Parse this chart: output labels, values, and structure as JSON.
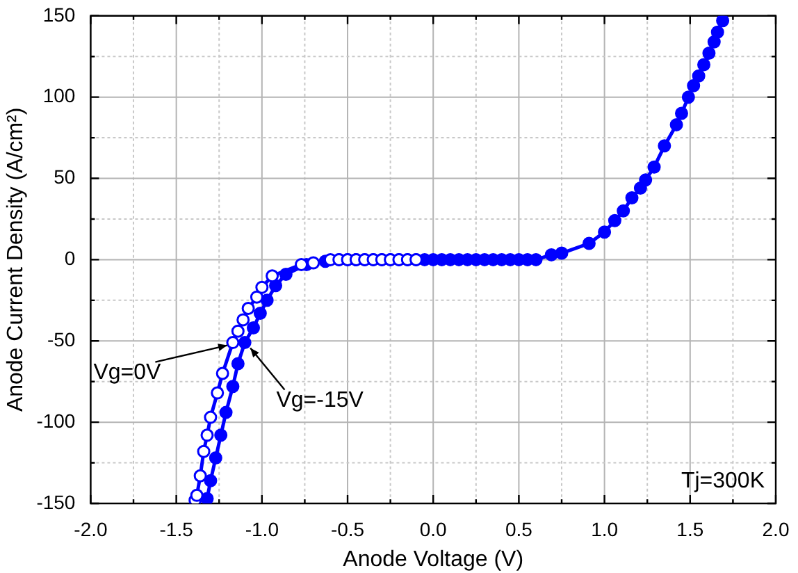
{
  "chart_data": {
    "type": "line",
    "xlabel": "Anode Voltage (V)",
    "ylabel": "Anode Current Density (A/cm²)",
    "xlim": [
      -2,
      2
    ],
    "ylim": [
      -150,
      150
    ],
    "xticks": [
      {
        "value": -2,
        "label": "-2.0"
      },
      {
        "value": -1.75,
        "label": null
      },
      {
        "value": -1.5,
        "label": "-1.5"
      },
      {
        "value": -1.25,
        "label": null
      },
      {
        "value": -1,
        "label": "-1.0"
      },
      {
        "value": -0.75,
        "label": null
      },
      {
        "value": -0.5,
        "label": "-0.5"
      },
      {
        "value": -0.25,
        "label": null
      },
      {
        "value": 0,
        "label": "0.0"
      },
      {
        "value": 0.25,
        "label": null
      },
      {
        "value": 0.5,
        "label": "0.5"
      },
      {
        "value": 0.75,
        "label": null
      },
      {
        "value": 1,
        "label": "1.0"
      },
      {
        "value": 1.25,
        "label": null
      },
      {
        "value": 1.5,
        "label": "1.5"
      },
      {
        "value": 1.75,
        "label": null
      },
      {
        "value": 2,
        "label": "2.0"
      }
    ],
    "yticks": [
      -150,
      {
        "value": -125,
        "label": null
      },
      -100,
      {
        "value": -75,
        "label": null
      },
      -50,
      {
        "value": -25,
        "label": null
      },
      0,
      {
        "value": 25,
        "label": null
      },
      50,
      {
        "value": 75,
        "label": null
      },
      100,
      {
        "value": 125,
        "label": null
      },
      150
    ],
    "grid": true,
    "legend": false,
    "marker": "circle",
    "line_style": "solid",
    "annotations": [
      "Tj=300K"
    ],
    "series": [
      {
        "name": "Vg=0V",
        "color": "#0000ff",
        "x": [
          -1.39,
          -1.38,
          -1.36,
          -1.34,
          -1.32,
          -1.3,
          -1.26,
          -1.23,
          -1.17,
          -1.14,
          -1.11,
          -1.08,
          -1.03,
          -1.0,
          -0.94,
          -0.77,
          -0.7,
          -0.6,
          -0.55,
          -0.5,
          -0.45,
          -0.4,
          -0.35,
          -0.3,
          -0.25,
          -0.2,
          -0.15,
          -0.1
        ],
        "values": [
          -148,
          -145,
          -133,
          -118,
          -108,
          -97,
          -82,
          -70,
          -51,
          -44,
          -37,
          -30,
          -23,
          -17,
          -10,
          -3,
          -2,
          0,
          0,
          0,
          0,
          0,
          0,
          0,
          0,
          0,
          0,
          0
        ]
      },
      {
        "name": "Vg=-15V",
        "color": "#0000ff",
        "x": [
          -1.32,
          -1.3,
          -1.27,
          -1.24,
          -1.21,
          -1.17,
          -1.14,
          -1.1,
          -1.05,
          -1.01,
          -0.97,
          -0.92,
          -0.86,
          -0.74,
          -0.63,
          -0.55,
          -0.5,
          -0.45,
          -0.4,
          -0.35,
          -0.3,
          -0.25,
          -0.2,
          -0.15,
          -0.1,
          -0.05,
          0,
          0.05,
          0.1,
          0.15,
          0.2,
          0.25,
          0.3,
          0.35,
          0.4,
          0.45,
          0.5,
          0.55,
          0.6,
          0.69,
          0.75,
          0.91,
          1.0,
          1.06,
          1.11,
          1.16,
          1.21,
          1.24,
          1.29,
          1.35,
          1.42,
          1.45,
          1.49,
          1.52,
          1.55,
          1.58,
          1.61,
          1.64,
          1.66,
          1.69
        ],
        "values": [
          -147,
          -136,
          -122,
          -108,
          -94,
          -78,
          -64,
          -51,
          -42,
          -33,
          -25,
          -16,
          -9,
          -3,
          -1,
          0,
          0,
          0,
          0,
          0,
          0,
          0,
          0,
          0,
          0,
          0,
          0,
          0,
          0,
          0,
          0,
          0,
          0,
          0,
          0,
          0,
          0,
          0,
          0,
          3,
          4,
          10,
          17,
          24,
          30,
          38,
          44,
          49,
          57,
          70,
          83,
          90,
          100,
          107,
          113,
          120,
          127,
          134,
          140,
          147
        ]
      }
    ]
  }
}
